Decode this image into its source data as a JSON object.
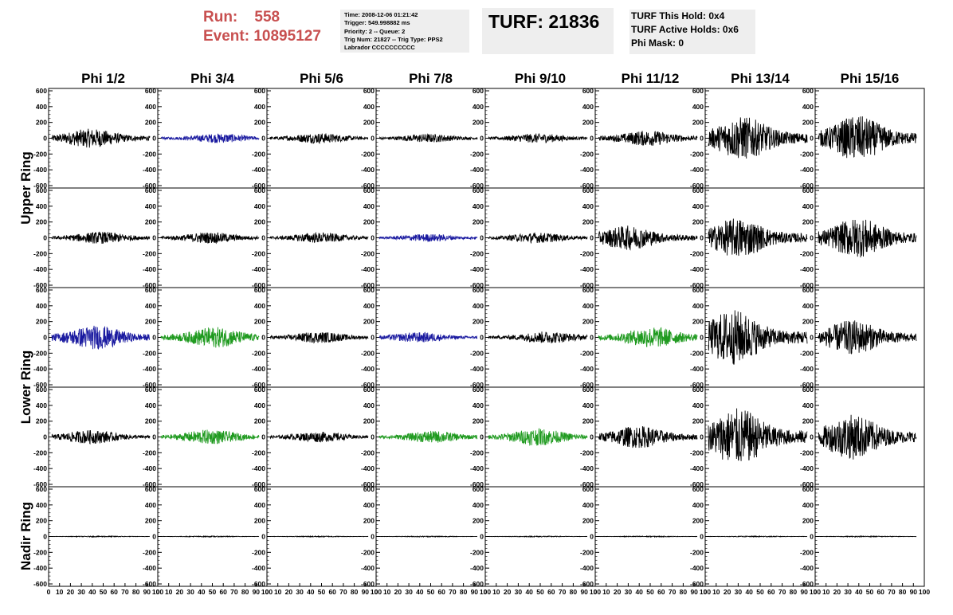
{
  "header": {
    "run_label": "Run:",
    "run_value": "558",
    "event_label": "Event:",
    "event_value": "10895127",
    "info_lines": [
      "Time: 2008-12-06 01:21:42",
      "Trigger: 549.998882 ms",
      "Priority: 2 -- Queue: 2",
      "Trig Num: 21827 -- Trig Type: PPS2",
      "Labrador CCCCCCCCCC"
    ],
    "turf": "TURF: 21836",
    "hold_lines": [
      "TURF This Hold: 0x4",
      "TURF Active Holds: 0x6",
      "Phi Mask: 0"
    ]
  },
  "columns": [
    "Phi 1/2",
    "Phi 3/4",
    "Phi 5/6",
    "Phi 7/8",
    "Phi 9/10",
    "Phi 11/12",
    "Phi 13/14",
    "Phi 15/16"
  ],
  "ring_labels": {
    "upper": "Upper Ring",
    "lower": "Lower Ring",
    "nadir": "Nadir Ring"
  },
  "colors": {
    "black": "#000000",
    "blue": "#1a1aa0",
    "green": "#1f9a1f",
    "header_red": "#c85050",
    "box_bg": "#eeeeee"
  },
  "chart_data": {
    "type": "line",
    "xlim": [
      0,
      100
    ],
    "ylim": [
      -600,
      600
    ],
    "x_ticks": [
      0,
      10,
      20,
      30,
      40,
      50,
      60,
      70,
      80,
      90,
      100
    ],
    "y_ticks": [
      600,
      400,
      200,
      0,
      -200,
      -400,
      -600
    ],
    "rows": 5,
    "cols": 8,
    "waveforms": [
      [
        {
          "color": "black",
          "amp": 110,
          "peak": 0.4
        },
        {
          "color": "blue",
          "amp": 55,
          "peak": 0.6
        },
        {
          "color": "black",
          "amp": 60,
          "peak": 0.5
        },
        {
          "color": "black",
          "amp": 50,
          "peak": 0.5
        },
        {
          "color": "black",
          "amp": 55,
          "peak": 0.5
        },
        {
          "color": "black",
          "amp": 90,
          "peak": 0.5
        },
        {
          "color": "black",
          "amp": 250,
          "peak": 0.35
        },
        {
          "color": "black",
          "amp": 260,
          "peak": 0.4
        }
      ],
      [
        {
          "color": "black",
          "amp": 70,
          "peak": 0.5
        },
        {
          "color": "black",
          "amp": 65,
          "peak": 0.5
        },
        {
          "color": "black",
          "amp": 60,
          "peak": 0.5
        },
        {
          "color": "blue",
          "amp": 45,
          "peak": 0.5
        },
        {
          "color": "black",
          "amp": 60,
          "peak": 0.5
        },
        {
          "color": "black",
          "amp": 140,
          "peak": 0.3
        },
        {
          "color": "black",
          "amp": 230,
          "peak": 0.3
        },
        {
          "color": "black",
          "amp": 230,
          "peak": 0.4
        }
      ],
      [
        {
          "color": "blue",
          "amp": 140,
          "peak": 0.45
        },
        {
          "color": "green",
          "amp": 120,
          "peak": 0.55
        },
        {
          "color": "black",
          "amp": 65,
          "peak": 0.5
        },
        {
          "color": "blue",
          "amp": 60,
          "peak": 0.4
        },
        {
          "color": "black",
          "amp": 70,
          "peak": 0.6
        },
        {
          "color": "green",
          "amp": 120,
          "peak": 0.55
        },
        {
          "color": "black",
          "amp": 320,
          "peak": 0.25
        },
        {
          "color": "black",
          "amp": 200,
          "peak": 0.35
        }
      ],
      [
        {
          "color": "black",
          "amp": 80,
          "peak": 0.4
        },
        {
          "color": "green",
          "amp": 85,
          "peak": 0.5
        },
        {
          "color": "black",
          "amp": 60,
          "peak": 0.5
        },
        {
          "color": "green",
          "amp": 70,
          "peak": 0.55
        },
        {
          "color": "green",
          "amp": 100,
          "peak": 0.5
        },
        {
          "color": "black",
          "amp": 130,
          "peak": 0.4
        },
        {
          "color": "black",
          "amp": 330,
          "peak": 0.3
        },
        {
          "color": "black",
          "amp": 260,
          "peak": 0.35
        }
      ],
      [
        {
          "color": "black",
          "amp": 6,
          "peak": 0.5
        },
        {
          "color": "black",
          "amp": 6,
          "peak": 0.5
        },
        {
          "color": "black",
          "amp": 6,
          "peak": 0.5
        },
        {
          "color": "black",
          "amp": 6,
          "peak": 0.5
        },
        {
          "color": "black",
          "amp": 6,
          "peak": 0.5
        },
        {
          "color": "black",
          "amp": 6,
          "peak": 0.5
        },
        {
          "color": "black",
          "amp": 6,
          "peak": 0.5
        },
        {
          "color": "black",
          "amp": 6,
          "peak": 0.5
        }
      ]
    ]
  }
}
